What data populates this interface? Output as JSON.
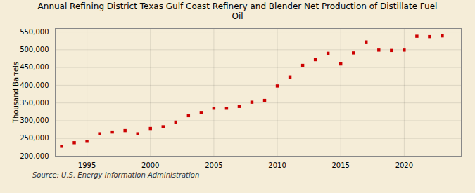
{
  "chart_data": {
    "type": "scatter",
    "title": "Annual Refining District Texas Gulf Coast Refinery and Blender Net Production of Distillate Fuel\nOil",
    "ylabel": "Thousand Barrels",
    "source": "Source: U.S. Energy Information Administration",
    "x": [
      1993,
      1994,
      1995,
      1996,
      1997,
      1998,
      1999,
      2000,
      2001,
      2002,
      2003,
      2004,
      2005,
      2006,
      2007,
      2008,
      2009,
      2010,
      2011,
      2012,
      2013,
      2014,
      2015,
      2016,
      2017,
      2018,
      2019,
      2020,
      2021,
      2022,
      2023
    ],
    "values": [
      228000,
      238000,
      242000,
      263000,
      268000,
      272000,
      263000,
      278000,
      283000,
      296000,
      314000,
      323000,
      335000,
      335000,
      340000,
      352000,
      357000,
      398000,
      423000,
      456000,
      472000,
      490000,
      460000,
      491000,
      522000,
      499000,
      498000,
      499000,
      538000,
      537000,
      539000
    ],
    "color": "#cc0000",
    "marker": "square",
    "xlim": [
      1992.5,
      2024.5
    ],
    "xticks": [
      1995,
      2000,
      2005,
      2010,
      2015,
      2020
    ],
    "ylim": [
      200000,
      560000
    ],
    "yticks": [
      {
        "value": 200000,
        "label": "200,000"
      },
      {
        "value": 250000,
        "label": "250,000"
      },
      {
        "value": 300000,
        "label": "300,000"
      },
      {
        "value": 350000,
        "label": "350,000"
      },
      {
        "value": 400000,
        "label": "400,000"
      },
      {
        "value": 450000,
        "label": "450,000"
      },
      {
        "value": 500000,
        "label": "500,000"
      },
      {
        "value": 550000,
        "label": "550,000"
      }
    ],
    "grid": true
  }
}
